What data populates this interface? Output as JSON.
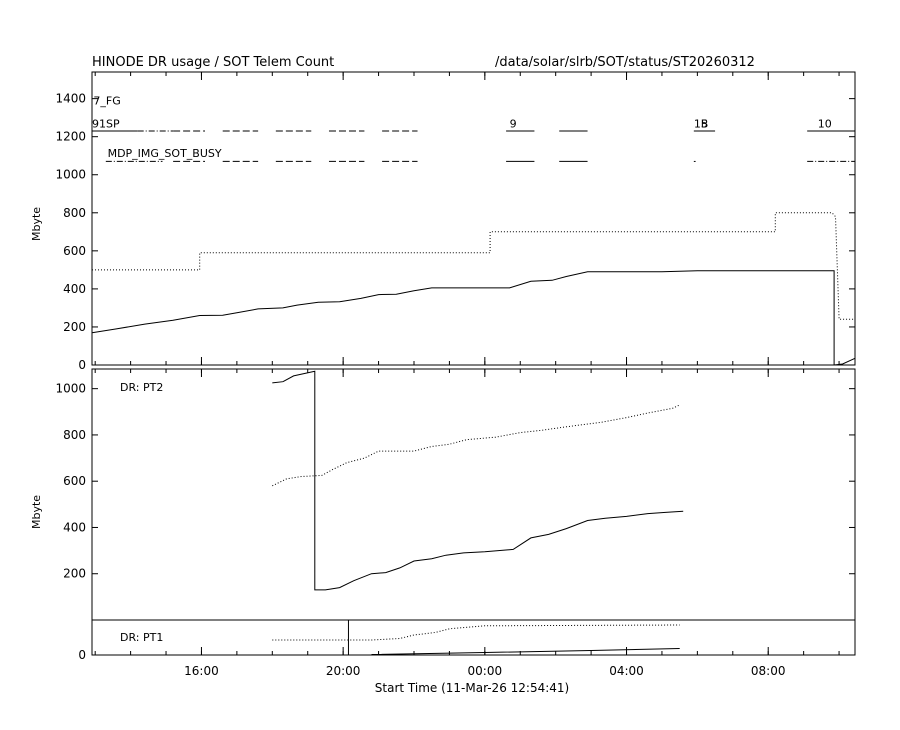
{
  "header": {
    "title": "HINODE DR usage / SOT Telem Count",
    "path": "/data/solar/slrb/SOT/status/ST20260312"
  },
  "x_axis": {
    "label": "Start Time (11-Mar-26 12:54:41)",
    "ticks": [
      {
        "h": 16,
        "label": "16:00"
      },
      {
        "h": 20,
        "label": "20:00"
      },
      {
        "h": 24,
        "label": "00:00"
      },
      {
        "h": 28,
        "label": "04:00"
      },
      {
        "h": 32,
        "label": "08:00"
      }
    ]
  },
  "chart_data": [
    {
      "type": "line",
      "panel": "top",
      "ylabel": "Mbyte",
      "xlim_hours": [
        12.91,
        34.45
      ],
      "ylim": [
        0,
        1540
      ],
      "yticks": [
        0,
        200,
        400,
        600,
        800,
        1000,
        1200,
        1400
      ],
      "annotations": [
        {
          "text": "7_FG",
          "h": 12.95,
          "y": 1390
        },
        {
          "text": "91SP",
          "h": 12.91,
          "y": 1270
        },
        {
          "text": "9",
          "h": 24.7,
          "y": 1270
        },
        {
          "text": "1B",
          "h": 29.9,
          "y": 1270
        },
        {
          "text": "5",
          "h": 30.1,
          "y": 1270
        },
        {
          "text": "10",
          "h": 33.4,
          "y": 1270
        },
        {
          "text": "MDP_IMG_SOT_BUSY",
          "h": 13.35,
          "y": 1115
        }
      ],
      "status_rows": [
        {
          "name": "SP",
          "y": 1230,
          "segments": [
            [
              12.91,
              14.2,
              "solid"
            ],
            [
              14.2,
              15.2,
              "dashdot"
            ],
            [
              15.2,
              16.1,
              "dash"
            ],
            [
              16.6,
              17.6,
              "dash"
            ],
            [
              18.1,
              19.1,
              "dash"
            ],
            [
              19.6,
              20.6,
              "dash"
            ],
            [
              21.1,
              22.1,
              "dash"
            ],
            [
              24.6,
              25.4,
              "solid"
            ],
            [
              26.1,
              26.9,
              "solid"
            ],
            [
              29.9,
              30.5,
              "solid"
            ],
            [
              33.1,
              34.45,
              "solid"
            ]
          ]
        },
        {
          "name": "MDP_IMG_SOT_BUSY",
          "y": 1070,
          "segments": [
            [
              13.3,
              14.9,
              "dashdot"
            ],
            [
              15.2,
              16.1,
              "dash"
            ],
            [
              16.6,
              17.6,
              "dash"
            ],
            [
              18.1,
              19.1,
              "dash"
            ],
            [
              19.6,
              20.6,
              "dash"
            ],
            [
              21.1,
              22.1,
              "dash"
            ],
            [
              24.6,
              25.4,
              "solid"
            ],
            [
              26.1,
              26.9,
              "solid"
            ],
            [
              29.9,
              29.95,
              "solid"
            ],
            [
              33.1,
              34.45,
              "dashdot"
            ]
          ]
        }
      ],
      "series": [
        {
          "style": "dotted",
          "points": [
            [
              12.91,
              500
            ],
            [
              15.95,
              500
            ],
            [
              15.95,
              590
            ],
            [
              24.15,
              590
            ],
            [
              24.15,
              700
            ],
            [
              32.2,
              700
            ],
            [
              32.2,
              800
            ],
            [
              33.8,
              800
            ],
            [
              33.9,
              780
            ],
            [
              34.0,
              240
            ],
            [
              34.45,
              240
            ]
          ]
        },
        {
          "style": "solid",
          "points": [
            [
              12.91,
              170
            ],
            [
              13.6,
              190
            ],
            [
              14.4,
              215
            ],
            [
              15.2,
              235
            ],
            [
              15.95,
              260
            ],
            [
              16.6,
              262
            ],
            [
              17.0,
              275
            ],
            [
              17.6,
              295
            ],
            [
              18.3,
              300
            ],
            [
              18.7,
              315
            ],
            [
              19.3,
              330
            ],
            [
              19.9,
              332
            ],
            [
              20.5,
              350
            ],
            [
              21.0,
              370
            ],
            [
              21.5,
              372
            ],
            [
              22.0,
              390
            ],
            [
              22.5,
              405
            ],
            [
              24.0,
              405
            ],
            [
              24.7,
              405
            ],
            [
              25.3,
              440
            ],
            [
              25.9,
              445
            ],
            [
              26.3,
              465
            ],
            [
              26.9,
              490
            ],
            [
              28.5,
              490
            ],
            [
              29.0,
              490
            ],
            [
              30.0,
              495
            ],
            [
              32.9,
              495
            ],
            [
              33.86,
              495
            ],
            [
              33.86,
              0
            ],
            [
              34.1,
              5
            ],
            [
              34.45,
              35
            ]
          ]
        }
      ]
    },
    {
      "type": "line",
      "panel": "middle",
      "ylabel": "Mbyte",
      "label": "DR: PT2",
      "xlim_hours": [
        12.91,
        34.45
      ],
      "ylim": [
        0,
        1085
      ],
      "yticks": [
        200,
        400,
        600,
        800,
        1000
      ],
      "series": [
        {
          "style": "solid",
          "points": [
            [
              18.0,
              1025
            ],
            [
              18.3,
              1030
            ],
            [
              18.6,
              1055
            ],
            [
              19.2,
              1075
            ],
            [
              19.2,
              130
            ],
            [
              19.5,
              130
            ],
            [
              19.9,
              140
            ],
            [
              20.3,
              170
            ],
            [
              20.8,
              200
            ],
            [
              21.2,
              205
            ],
            [
              21.6,
              225
            ],
            [
              22.0,
              255
            ],
            [
              22.5,
              265
            ],
            [
              22.9,
              280
            ],
            [
              23.4,
              290
            ],
            [
              24.0,
              295
            ],
            [
              24.8,
              305
            ],
            [
              25.3,
              355
            ],
            [
              25.8,
              370
            ],
            [
              26.3,
              395
            ],
            [
              26.9,
              430
            ],
            [
              27.4,
              440
            ],
            [
              28.0,
              448
            ],
            [
              28.6,
              460
            ],
            [
              29.1,
              465
            ],
            [
              29.6,
              470
            ]
          ]
        },
        {
          "style": "dotted",
          "points": [
            [
              18.0,
              580
            ],
            [
              18.4,
              610
            ],
            [
              18.8,
              620
            ],
            [
              19.4,
              625
            ],
            [
              19.7,
              650
            ],
            [
              20.1,
              680
            ],
            [
              20.6,
              700
            ],
            [
              21.0,
              730
            ],
            [
              22.0,
              730
            ],
            [
              22.5,
              750
            ],
            [
              23.0,
              760
            ],
            [
              23.5,
              780
            ],
            [
              24.3,
              790
            ],
            [
              25.0,
              810
            ],
            [
              25.6,
              820
            ],
            [
              26.3,
              835
            ],
            [
              26.8,
              845
            ],
            [
              27.3,
              855
            ],
            [
              28.0,
              875
            ],
            [
              28.6,
              895
            ],
            [
              29.3,
              915
            ],
            [
              29.5,
              930
            ]
          ]
        }
      ]
    },
    {
      "type": "line",
      "panel": "bottom",
      "label": "DR: PT1",
      "xlim_hours": [
        12.91,
        34.45
      ],
      "ylim": [
        0,
        140
      ],
      "yticks": [
        0
      ],
      "series": [
        {
          "style": "dotted",
          "points": [
            [
              18.0,
              60
            ],
            [
              20.8,
              60
            ],
            [
              21.6,
              66
            ],
            [
              22.0,
              80
            ],
            [
              22.6,
              90
            ],
            [
              23.0,
              105
            ],
            [
              24.0,
              117
            ],
            [
              29.5,
              120
            ]
          ]
        },
        {
          "style": "solid",
          "points": [
            [
              20.8,
              2
            ],
            [
              24.0,
              10
            ],
            [
              27.0,
              18
            ],
            [
              29.5,
              26
            ]
          ]
        }
      ],
      "markers": [
        {
          "h": 20.15,
          "y_from": 0,
          "y_to": 140
        }
      ]
    }
  ]
}
